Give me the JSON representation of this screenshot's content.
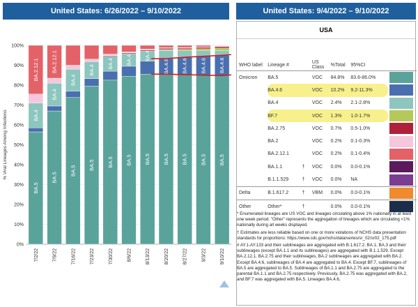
{
  "left_title": "United States: 6/26/2022 – 9/10/2022",
  "right_title": "United States: 9/4/2022 – 9/10/2022",
  "chart_data": {
    "type": "bar",
    "stacked": true,
    "ylabel": "% Viral Lineages Among Infections",
    "xlabel": "Collection date, week ending",
    "ylim": [
      0,
      100
    ],
    "yticks": [
      "0%",
      "10%",
      "20%",
      "30%",
      "40%",
      "50%",
      "60%",
      "70%",
      "80%",
      "90%",
      "100%"
    ],
    "grid": true,
    "categories": [
      "7/2/22",
      "7/9/22",
      "7/16/22",
      "7/23/22",
      "7/30/22",
      "8/6/22",
      "8/13/22",
      "8/20/22",
      "8/27/22",
      "9/3/22",
      "9/10/22"
    ],
    "series": [
      {
        "name": "BA.5",
        "color": "#5aa39b",
        "values": [
          56.5,
          67,
          73.8,
          79.5,
          82.5,
          84.5,
          85.5,
          85.5,
          85.3,
          85,
          84.8
        ],
        "labels": [
          "BA.5",
          "BA.5",
          "BA.5",
          "BA.5",
          "BA.5",
          "BA.5",
          "BA.5",
          "BA.5",
          "BA.5",
          "BA.5",
          "BA.5"
        ]
      },
      {
        "name": "BA.4.6",
        "color": "#4a6fae",
        "values": [
          2,
          2.5,
          3.2,
          3.8,
          4.5,
          5,
          6.5,
          7.8,
          8.7,
          9.5,
          10.2
        ],
        "labels": [
          "",
          "",
          "",
          "",
          "",
          "",
          "",
          "BA.4.6",
          "BA.4.6",
          "BA.4.6",
          "BA.4.6"
        ]
      },
      {
        "name": "BA.4",
        "color": "#8cc6be",
        "values": [
          12.5,
          11.5,
          11,
          8.5,
          7.5,
          6.3,
          5.2,
          4.2,
          3.3,
          2.8,
          2.4
        ],
        "labels": [
          "BA.4",
          "BA.4",
          "BA.4",
          "BA.4",
          "BA.4",
          "BA.4",
          "BA.4",
          "",
          "",
          "",
          ""
        ]
      },
      {
        "name": "BF.7",
        "color": "#b6c85a",
        "values": [
          0,
          0,
          0,
          0,
          0,
          0,
          0,
          0.4,
          0.7,
          1,
          1.3
        ],
        "labels": [
          "",
          "",
          "",
          "",
          "",
          "",
          "",
          "",
          "",
          "",
          ""
        ]
      },
      {
        "name": "BA.2.75",
        "color": "#b0203a",
        "values": [
          0,
          0,
          0,
          0,
          0.3,
          0.4,
          0.5,
          0.6,
          0.6,
          0.7,
          0.7
        ],
        "labels": [
          "",
          "",
          "",
          "",
          "",
          "",
          "",
          "",
          "",
          "",
          ""
        ]
      },
      {
        "name": "BA.2",
        "color": "#f5c6dc",
        "values": [
          4.5,
          2.5,
          2,
          1.3,
          0.8,
          0.5,
          0.4,
          0.3,
          0.3,
          0.2,
          0.2
        ],
        "labels": [
          "",
          "",
          "",
          "",
          "",
          "",
          "",
          "",
          "",
          "",
          ""
        ]
      },
      {
        "name": "BA.2.12.1",
        "color": "#e36268",
        "values": [
          24.5,
          16.5,
          10,
          6.9,
          4.4,
          3.3,
          1.9,
          1.2,
          1.1,
          0.8,
          0.2
        ],
        "labels": [
          "BA.2.12.1",
          "BA.2.12.1",
          "",
          "",
          "",
          "",
          "",
          "",
          "",
          "",
          ""
        ]
      },
      {
        "name": "BA.1.1",
        "color": "#5b1a5c",
        "values": [
          0,
          0,
          0,
          0,
          0,
          0,
          0,
          0,
          0,
          0,
          0
        ],
        "labels": [
          "",
          "",
          "",
          "",
          "",
          "",
          "",
          "",
          "",
          "",
          ""
        ]
      },
      {
        "name": "B.1.1.529",
        "color": "#7a3d92",
        "values": [
          0,
          0,
          0,
          0,
          0,
          0,
          0,
          0,
          0,
          0,
          0
        ],
        "labels": [
          "",
          "",
          "",
          "",
          "",
          "",
          "",
          "",
          "",
          "",
          ""
        ]
      },
      {
        "name": "B.1.617.2",
        "color": "#f08a2c",
        "values": [
          0,
          0,
          0,
          0,
          0,
          0,
          0,
          0,
          0,
          0,
          0
        ],
        "labels": [
          "",
          "",
          "",
          "",
          "",
          "",
          "",
          "",
          "",
          "",
          ""
        ]
      },
      {
        "name": "Other",
        "color": "#1b2d4a",
        "values": [
          0,
          0,
          0,
          0,
          0,
          0,
          0,
          0,
          0,
          0,
          0
        ],
        "labels": [
          "",
          "",
          "",
          "",
          "",
          "",
          "",
          "",
          "",
          "",
          ""
        ]
      }
    ],
    "annotation": {
      "type": "red-bracket-lines",
      "color": "#d7191c",
      "around_series": "BA.4.6",
      "from_category": "8/20/22",
      "to_category": "9/10/22"
    }
  },
  "table": {
    "region": "USA",
    "headers": {
      "who": "WHO label",
      "lineage": "Lineage #",
      "cls": "US Class",
      "total": "%Total",
      "ci": "95%CI"
    },
    "rows": [
      {
        "who": "Omicron",
        "lineage": "BA.5",
        "dagger": "",
        "cls": "VOC",
        "total": "84.8%",
        "ci": "83.6-86.0%",
        "color": "#5aa39b",
        "hl": false,
        "sep": false
      },
      {
        "who": "",
        "lineage": "BA.4.6",
        "dagger": "",
        "cls": "VOC",
        "total": "10.2%",
        "ci": "9.2-11.3%",
        "color": "#4a6fae",
        "hl": true,
        "sep": false
      },
      {
        "who": "",
        "lineage": "BA.4",
        "dagger": "",
        "cls": "VOC",
        "total": "2.4%",
        "ci": "2.1-2.8%",
        "color": "#8cc6be",
        "hl": false,
        "sep": false
      },
      {
        "who": "",
        "lineage": "BF.7",
        "dagger": "",
        "cls": "VOC",
        "total": "1.3%",
        "ci": "1.0-1.7%",
        "color": "#b6c85a",
        "hl": true,
        "sep": false
      },
      {
        "who": "",
        "lineage": "BA.2.75",
        "dagger": "",
        "cls": "VOC",
        "total": "0.7%",
        "ci": "0.5-1.0%",
        "color": "#b0203a",
        "hl": false,
        "sep": false
      },
      {
        "who": "",
        "lineage": "BA.2",
        "dagger": "",
        "cls": "VOC",
        "total": "0.2%",
        "ci": "0.1-0.3%",
        "color": "#f5c6dc",
        "hl": false,
        "sep": false
      },
      {
        "who": "",
        "lineage": "BA.2.12.1",
        "dagger": "",
        "cls": "VOC",
        "total": "0.2%",
        "ci": "0.1-0.4%",
        "color": "#e36268",
        "hl": false,
        "sep": false
      },
      {
        "who": "",
        "lineage": "BA.1.1",
        "dagger": "†",
        "cls": "VOC",
        "total": "0.0%",
        "ci": "0.0-0.1%",
        "color": "#5b1a5c",
        "hl": false,
        "sep": false
      },
      {
        "who": "",
        "lineage": "B.1.1.529",
        "dagger": "†",
        "cls": "VOC",
        "total": "0.0%",
        "ci": "NA",
        "color": "#7a3d92",
        "hl": false,
        "sep": true
      },
      {
        "who": "Delta",
        "lineage": "B.1.617.2",
        "dagger": "†",
        "cls": "VBM",
        "total": "0.0%",
        "ci": "0.0-0.1%",
        "color": "#f08a2c",
        "hl": false,
        "sep": true
      },
      {
        "who": "Other",
        "lineage": "Other*",
        "dagger": "†",
        "cls": "",
        "total": "0.0%",
        "ci": "0.0-0.1%",
        "color": "#1b2d4a",
        "hl": false,
        "sep": false
      }
    ]
  },
  "notes": [
    "*       Enumerated lineages are US VOC and lineages circulating above 1% nationally in at least one week period. \"Other\" represents the aggregation of lineages which are circulating <1% nationally during all weeks displayed.",
    "†       Estimates are less reliable based on one or more violations of NCHS data presentation standards for proportions: https://www.cdc.gov/nchs/data/series/sr_02/sr02_175.pdf",
    "#       AY.1-AY.133 and their sublineages are aggregated with B.1.617.2. BA.1, BA.3 and their sublineages (except BA.1.1 and its sublineages) are aggregated with B.1.1.529. Except BA.2.12.1, BA.2.75 and their sublineages, BA.2 sublineages are aggregated with BA.2. Except BA.4.6, sublineages of BA.4 are aggregated to BA.4. Except BF.7, sublineages of BA.5 are aggregated to BA.5. Sublineages of BA.1.1 and BA.2.75 are aggregated to the parental BA.1.1 and BA.2.75 respectively. Previously, BA.2.75 was aggregated with BA.2, and BF.7 was aggregated with BA.5. Lineages BA.4.6,"
  ]
}
